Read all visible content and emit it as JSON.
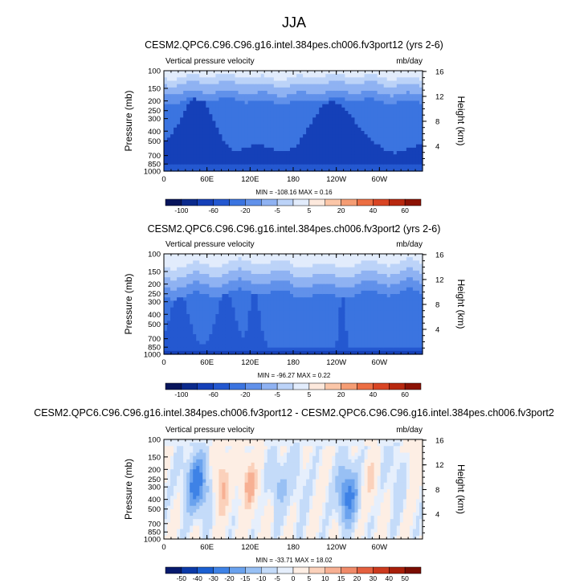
{
  "page_title": "JJA",
  "chart_data": [
    {
      "type": "heatmap",
      "title": "CESM2.QPC6.C96.C96.g16.intel.384pes.ch006.fv3port12 (yrs 2-6)",
      "left_label": "Vertical pressure velocity",
      "units_label": "mb/day",
      "ylabel": "Pressure (mb)",
      "ylabel_right": "Height (km)",
      "x_ticks": [
        "0",
        "60E",
        "120E",
        "180",
        "120W",
        "60W"
      ],
      "y_ticks": [
        "100",
        "150",
        "200",
        "250",
        "300",
        "400",
        "500",
        "700",
        "850",
        "1000"
      ],
      "y_ticks_right": [
        "16",
        "12",
        "8",
        "4"
      ],
      "stats": "MIN = -108.16  MAX =  0.16",
      "colorbar_labels": [
        "-100",
        "-60",
        "-20",
        "-5",
        "5",
        "20",
        "40",
        "60"
      ],
      "colorbar_colors": [
        "#08155c",
        "#0b2a8c",
        "#1540b8",
        "#2458d0",
        "#3b74e0",
        "#6191ea",
        "#8fb2f2",
        "#bcd3f8",
        "#e2ecfc",
        "#fde9dd",
        "#fbc6a8",
        "#f59d74",
        "#ec6e43",
        "#d94524",
        "#b8280f",
        "#8c1204"
      ]
    },
    {
      "type": "heatmap",
      "title": "CESM2.QPC6.C96.C96.g16.intel.384pes.ch006.fv3port2 (yrs 2-6)",
      "left_label": "Vertical pressure velocity",
      "units_label": "mb/day",
      "ylabel": "Pressure (mb)",
      "ylabel_right": "Height (km)",
      "x_ticks": [
        "0",
        "60E",
        "120E",
        "180",
        "120W",
        "60W"
      ],
      "y_ticks": [
        "100",
        "150",
        "200",
        "250",
        "300",
        "400",
        "500",
        "700",
        "850",
        "1000"
      ],
      "y_ticks_right": [
        "16",
        "12",
        "8",
        "4"
      ],
      "stats": "MIN = -96.27  MAX =  0.22",
      "colorbar_labels": [
        "-100",
        "-60",
        "-20",
        "-5",
        "5",
        "20",
        "40",
        "60"
      ],
      "colorbar_colors": [
        "#08155c",
        "#0b2a8c",
        "#1540b8",
        "#2458d0",
        "#3b74e0",
        "#6191ea",
        "#8fb2f2",
        "#bcd3f8",
        "#e2ecfc",
        "#fde9dd",
        "#fbc6a8",
        "#f59d74",
        "#ec6e43",
        "#d94524",
        "#b8280f",
        "#8c1204"
      ]
    },
    {
      "type": "heatmap",
      "title": "CESM2.QPC6.C96.C96.g16.intel.384pes.ch006.fv3port12 - CESM2.QPC6.C96.C96.g16.intel.384pes.ch006.fv3port2",
      "left_label": "Vertical pressure velocity",
      "units_label": "mb/day",
      "ylabel": "Pressure (mb)",
      "ylabel_right": "Height (km)",
      "x_ticks": [
        "0",
        "60E",
        "120E",
        "180",
        "120W",
        "60W"
      ],
      "y_ticks": [
        "100",
        "150",
        "200",
        "250",
        "300",
        "400",
        "500",
        "700",
        "850",
        "1000"
      ],
      "y_ticks_right": [
        "16",
        "12",
        "8",
        "4"
      ],
      "stats": "MIN = -33.71  MAX =  18.02",
      "colorbar_labels": [
        "-50",
        "-40",
        "-30",
        "-20",
        "-15",
        "-10",
        "-5",
        "0",
        "5",
        "10",
        "15",
        "20",
        "30",
        "40",
        "50"
      ],
      "colorbar_colors": [
        "#071a6e",
        "#0c3aa8",
        "#1b5fd1",
        "#3e82e6",
        "#6aa2ee",
        "#98c0f4",
        "#c4dbf9",
        "#e6effc",
        "#fdeee4",
        "#fbd1bb",
        "#f7b093",
        "#f08a69",
        "#e4603f",
        "#cc3a1e",
        "#a81f0a",
        "#7a0d02"
      ]
    }
  ]
}
